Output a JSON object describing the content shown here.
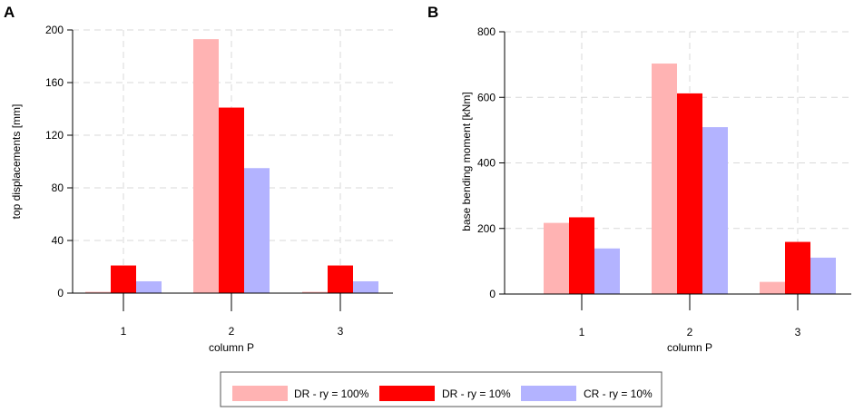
{
  "legend": [
    {
      "label": "DR - ry = 100%",
      "color": "#ffb3b3"
    },
    {
      "label": "DR - ry = 10%",
      "color": "#ff0000"
    },
    {
      "label": "CR - ry = 10%",
      "color": "#b3b3ff"
    }
  ],
  "chart_data": [
    {
      "panel": "A",
      "type": "bar",
      "categories": [
        "1",
        "2",
        "3"
      ],
      "xlabel": "column P",
      "ylabel": "top displacements [mm]",
      "ylim": [
        0,
        200
      ],
      "yticks": [
        0,
        40,
        80,
        120,
        160,
        200
      ],
      "grid": true,
      "series": [
        {
          "name": "DR - ry = 100%",
          "values": [
            1,
            193,
            1
          ]
        },
        {
          "name": "DR - ry = 10%",
          "values": [
            21,
            141,
            21
          ]
        },
        {
          "name": "CR - ry = 10%",
          "values": [
            9,
            95,
            9
          ]
        }
      ]
    },
    {
      "panel": "B",
      "type": "bar",
      "categories": [
        "1",
        "2",
        "3"
      ],
      "xlabel": "column P",
      "ylabel": "base bending moment [kNm]",
      "ylim": [
        0,
        800
      ],
      "yticks": [
        0,
        200,
        400,
        600,
        800
      ],
      "grid": true,
      "series": [
        {
          "name": "DR - ry = 100%",
          "values": [
            217,
            703,
            37
          ]
        },
        {
          "name": "DR - ry = 10%",
          "values": [
            234,
            612,
            159
          ]
        },
        {
          "name": "CR - ry = 10%",
          "values": [
            139,
            509,
            111
          ]
        }
      ]
    }
  ]
}
